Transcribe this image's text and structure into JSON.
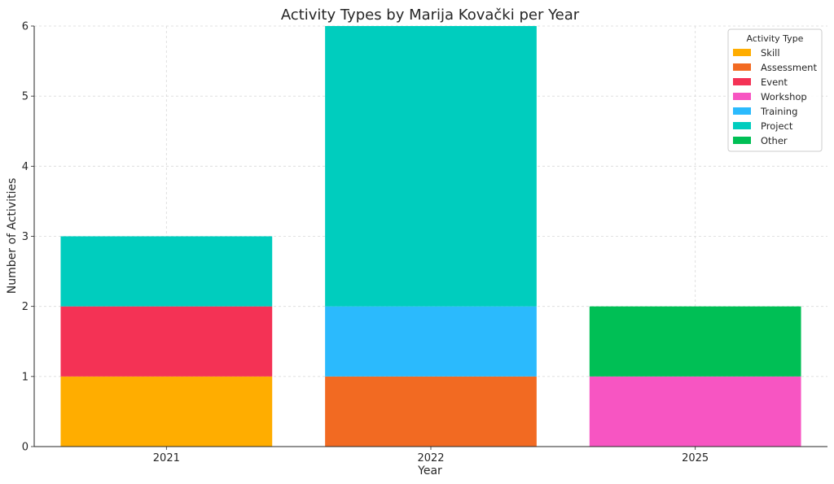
{
  "chart_data": {
    "type": "bar",
    "stacked": true,
    "title": "Activity Types by Marija Kovački per Year",
    "xlabel": "Year",
    "ylabel": "Number of Activities",
    "categories": [
      "2021",
      "2022",
      "2025"
    ],
    "ylim": [
      0,
      6
    ],
    "yticks": [
      0,
      1,
      2,
      3,
      4,
      5,
      6
    ],
    "grid": true,
    "legend": {
      "title": "Activity Type",
      "position": "top-right"
    },
    "series": [
      {
        "name": "Skill",
        "color": "#FFAD00",
        "values": [
          1,
          0,
          0
        ]
      },
      {
        "name": "Assessment",
        "color": "#F26A22",
        "values": [
          0,
          1,
          0
        ]
      },
      {
        "name": "Event",
        "color": "#F43255",
        "values": [
          1,
          0,
          0
        ]
      },
      {
        "name": "Workshop",
        "color": "#F755C2",
        "values": [
          0,
          0,
          1
        ]
      },
      {
        "name": "Training",
        "color": "#2BBAFD",
        "values": [
          0,
          1,
          0
        ]
      },
      {
        "name": "Project",
        "color": "#00CDBE",
        "values": [
          1,
          4,
          0
        ]
      },
      {
        "name": "Other",
        "color": "#00BF55",
        "values": [
          0,
          0,
          1
        ]
      }
    ]
  }
}
